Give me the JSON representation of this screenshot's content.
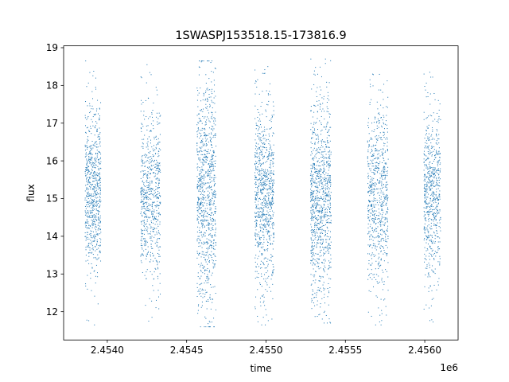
{
  "chart_data": {
    "type": "scatter",
    "title": "1SWASPJ153518.15-173816.9",
    "xlabel": "time",
    "ylabel": "flux",
    "x_offset_label": "1e6",
    "xlim": [
      2453725,
      2456210
    ],
    "ylim": [
      11.25,
      19.05
    ],
    "xticks": [
      2454000,
      2454500,
      2455000,
      2455500,
      2456000
    ],
    "xtick_labels": [
      "2.4540",
      "2.4545",
      "2.4550",
      "2.4555",
      "2.4560"
    ],
    "yticks": [
      12,
      13,
      14,
      15,
      16,
      17,
      18,
      19
    ],
    "ytick_labels": [
      "12",
      "13",
      "14",
      "15",
      "16",
      "17",
      "18",
      "19"
    ],
    "grid": false,
    "point_color": "#1f77b4",
    "seasons": [
      {
        "start": 2453860,
        "end": 2453960,
        "median": 15.2,
        "q_low": 14.5,
        "q_high": 15.9,
        "min": 11.65,
        "max": 18.65,
        "n_points": 700
      },
      {
        "start": 2454210,
        "end": 2454335,
        "median": 15.05,
        "q_low": 14.3,
        "q_high": 15.8,
        "min": 11.75,
        "max": 18.55,
        "n_points": 650
      },
      {
        "start": 2454565,
        "end": 2454685,
        "median": 15.15,
        "q_low": 14.2,
        "q_high": 16.2,
        "min": 11.6,
        "max": 18.65,
        "n_points": 900
      },
      {
        "start": 2454930,
        "end": 2455050,
        "median": 15.1,
        "q_low": 14.3,
        "q_high": 15.9,
        "min": 11.65,
        "max": 18.5,
        "n_points": 850
      },
      {
        "start": 2455280,
        "end": 2455410,
        "median": 15.0,
        "q_low": 14.1,
        "q_high": 15.9,
        "min": 11.7,
        "max": 18.7,
        "n_points": 950
      },
      {
        "start": 2455640,
        "end": 2455770,
        "median": 15.05,
        "q_low": 14.2,
        "q_high": 15.8,
        "min": 11.65,
        "max": 18.3,
        "n_points": 700
      },
      {
        "start": 2455995,
        "end": 2456100,
        "median": 15.2,
        "q_low": 14.4,
        "q_high": 15.9,
        "min": 11.6,
        "max": 18.35,
        "n_points": 650
      }
    ]
  }
}
